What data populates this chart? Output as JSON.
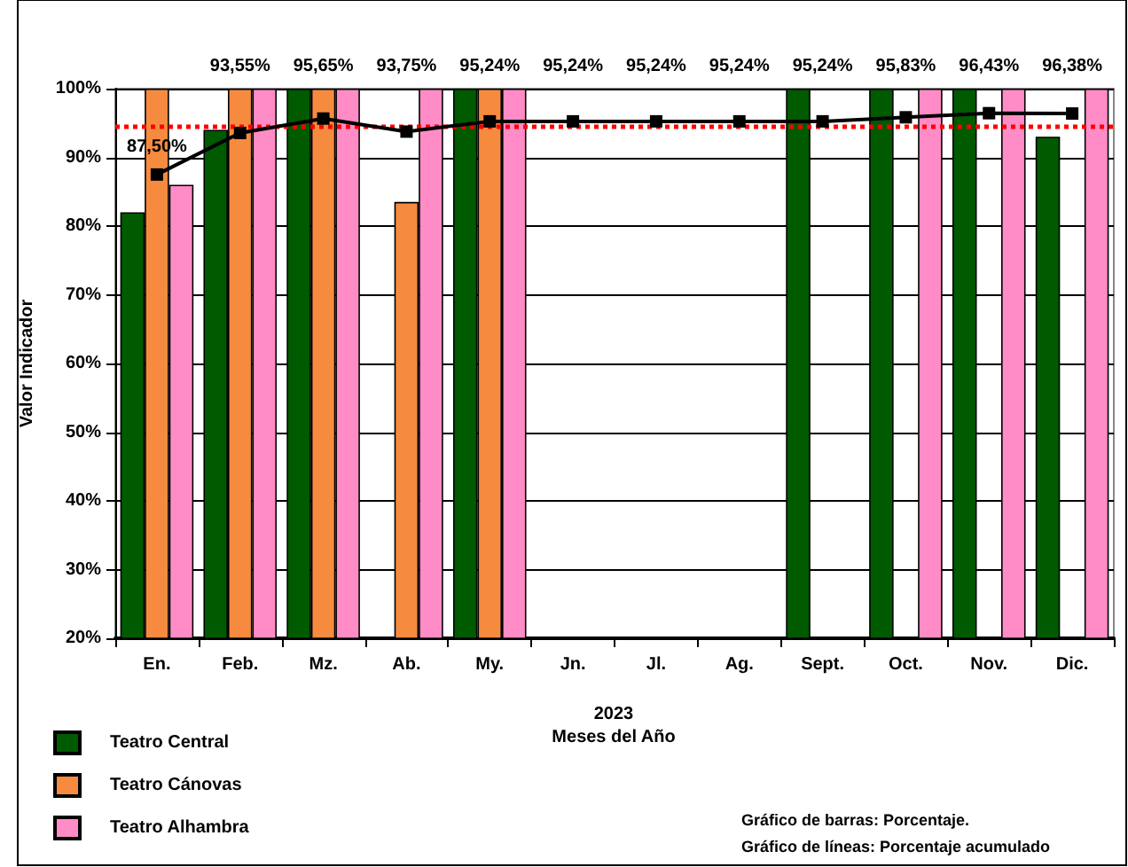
{
  "chart_data": {
    "type": "bar",
    "categories": [
      "En.",
      "Feb.",
      "Mz.",
      "Ab.",
      "My.",
      "Jn.",
      "Jl.",
      "Ag.",
      "Sept.",
      "Oct.",
      "Nov.",
      "Dic."
    ],
    "series": [
      {
        "name": "Teatro Central",
        "color": "#005a00",
        "values": [
          82,
          94,
          100,
          null,
          100,
          null,
          null,
          null,
          100,
          100,
          100,
          93
        ]
      },
      {
        "name": "Teatro Cánovas",
        "color": "#f68b3f",
        "values": [
          100,
          100,
          100,
          83.5,
          100,
          null,
          null,
          null,
          null,
          null,
          null,
          null
        ]
      },
      {
        "name": "Teatro Alhambra",
        "color": "#ff8cc6",
        "values": [
          86,
          100,
          100,
          100,
          100,
          null,
          null,
          null,
          null,
          100,
          100,
          100
        ]
      },
      {
        "type": "line",
        "color": "#000000",
        "marker": "square",
        "values": [
          87.5,
          93.55,
          95.65,
          93.75,
          95.24,
          95.24,
          95.24,
          95.24,
          95.24,
          95.83,
          96.43,
          96.38
        ],
        "value_labels": [
          "87,50%",
          "93,55%",
          "95,65%",
          "93,75%",
          "95,24%",
          "95,24%",
          "95,24%",
          "95,24%",
          "95,24%",
          "95,83%",
          "96,43%",
          "96,38%"
        ]
      }
    ],
    "xlabel": "2023\nMeses del Año",
    "ylabel": "Valor Indicador",
    "ylim": [
      20,
      100
    ],
    "yticks": [
      {
        "value": 20,
        "label": "20%"
      },
      {
        "value": 30,
        "label": "30%"
      },
      {
        "value": 40,
        "label": "40%"
      },
      {
        "value": 50,
        "label": "50%"
      },
      {
        "value": 60,
        "label": "60%"
      },
      {
        "value": 70,
        "label": "70%"
      },
      {
        "value": 80,
        "label": "80%"
      },
      {
        "value": 90,
        "label": "90%"
      },
      {
        "value": 100,
        "label": "100%"
      }
    ],
    "grid": "y",
    "legend": "bottom left",
    "ref_lines": [
      {
        "axis": "y",
        "value": 94.5,
        "color": "#ff0000",
        "line_style": "dotted"
      }
    ],
    "annotations": [
      "Gráfico de barras: Porcentaje.",
      "Gráfico de líneas: Porcentaje acumulado"
    ]
  }
}
